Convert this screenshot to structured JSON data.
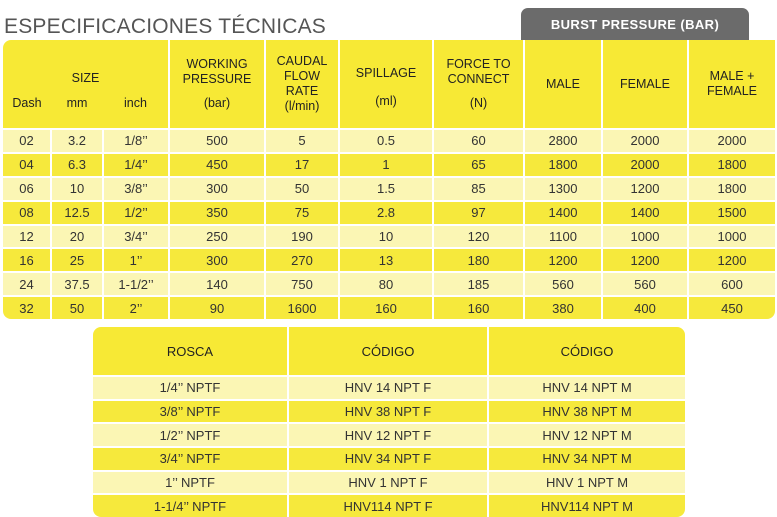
{
  "title": "ESPECIFICACIONES TÉCNICAS",
  "burst_header": "BURST PRESSURE (BAR)",
  "spec": {
    "headers": {
      "size": "SIZE",
      "dash": "Dash",
      "mm": "mm",
      "inch": "inch",
      "working_1": "WORKING",
      "working_2": "PRESSURE",
      "working_unit": "(bar)",
      "caudal_1": "CAUDAL",
      "caudal_2": "FLOW",
      "caudal_3": "RATE",
      "caudal_unit": "(l/min)",
      "spillage": "SPILLAGE",
      "spillage_unit": "(ml)",
      "force_1": "FORCE TO",
      "force_2": "CONNECT",
      "force_unit": "(N)",
      "male": "MALE",
      "female": "FEMALE",
      "mf_1": "MALE +",
      "mf_2": "FEMALE"
    },
    "rows": [
      [
        "02",
        "3.2",
        "1/8’’",
        "500",
        "5",
        "0.5",
        "60",
        "2800",
        "2000",
        "2000"
      ],
      [
        "04",
        "6.3",
        "1/4’’",
        "450",
        "17",
        "1",
        "65",
        "1800",
        "2000",
        "1800"
      ],
      [
        "06",
        "10",
        "3/8’’",
        "300",
        "50",
        "1.5",
        "85",
        "1300",
        "1200",
        "1800"
      ],
      [
        "08",
        "12.5",
        "1/2’’",
        "350",
        "75",
        "2.8",
        "97",
        "1400",
        "1400",
        "1500"
      ],
      [
        "12",
        "20",
        "3/4’’",
        "250",
        "190",
        "10",
        "120",
        "1100",
        "1000",
        "1000"
      ],
      [
        "16",
        "25",
        "1’’",
        "300",
        "270",
        "13",
        "180",
        "1200",
        "1200",
        "1200"
      ],
      [
        "24",
        "37.5",
        "1-1/2’’",
        "140",
        "750",
        "80",
        "185",
        "560",
        "560",
        "600"
      ],
      [
        "32",
        "50",
        "2’’",
        "90",
        "1600",
        "160",
        "160",
        "380",
        "400",
        "450"
      ]
    ]
  },
  "rosca": {
    "headers": [
      "ROSCA",
      "CÓDIGO",
      "CÓDIGO"
    ],
    "rows": [
      [
        "1/4’’ NPTF",
        "HNV 14 NPT F",
        "HNV 14 NPT M"
      ],
      [
        "3/8’’ NPTF",
        "HNV 38 NPT F",
        "HNV 38 NPT M"
      ],
      [
        "1/2’’ NPTF",
        "HNV 12 NPT F",
        "HNV 12 NPT M"
      ],
      [
        "3/4’’ NPTF",
        "HNV 34 NPT F",
        "HNV 34 NPT M"
      ],
      [
        "1’’ NPTF",
        "HNV 1 NPT F",
        "HNV 1 NPT M"
      ],
      [
        "1-1/4’’ NPTF",
        "HNV114 NPT F",
        "HNV114 NPT M"
      ]
    ]
  }
}
